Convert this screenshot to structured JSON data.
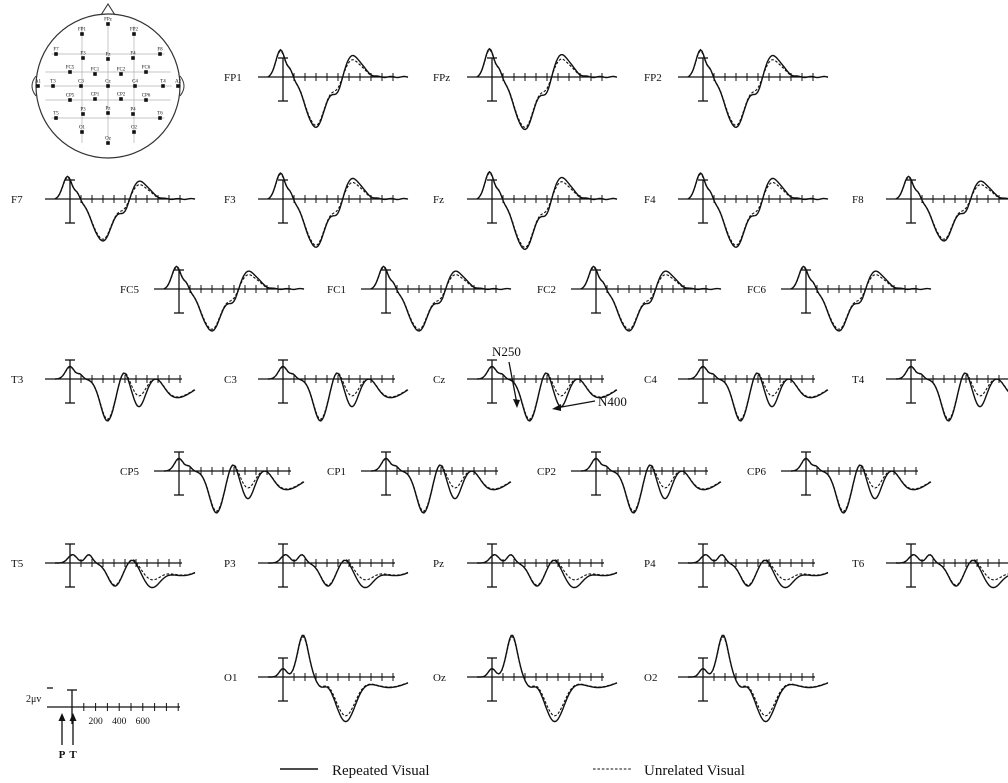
{
  "chart_data": {
    "type": "line",
    "title": "",
    "electrodes": [
      "FP1",
      "FPz",
      "FP2",
      "F7",
      "F3",
      "Fz",
      "F4",
      "F8",
      "FC5",
      "FC1",
      "FC2",
      "FC6",
      "T3",
      "C3",
      "Cz",
      "C4",
      "T4",
      "CP5",
      "CP1",
      "CP2",
      "CP6",
      "T5",
      "P3",
      "Pz",
      "P4",
      "T6",
      "O1",
      "Oz",
      "O2"
    ],
    "series": [
      {
        "name": "Repeated Visual",
        "style": "solid"
      },
      {
        "name": "Unrelated Visual",
        "style": "dashed"
      }
    ],
    "time_ticks_ms": [
      200,
      400,
      600
    ],
    "x_unit": "ms",
    "scale_label": "2μv",
    "event_markers": [
      "P",
      "T"
    ],
    "annotations": [
      "N250",
      "N400"
    ],
    "annotated_electrode": "Cz",
    "montage_labels": [
      "FPz",
      "FP1",
      "FP2",
      "F7",
      "F3",
      "Fz",
      "F4",
      "F8",
      "FC5",
      "FC1",
      "FC2",
      "FC6",
      "A1",
      "T3",
      "C3",
      "Cz",
      "C4",
      "T4",
      "A2",
      "CP5",
      "CP1",
      "CP2",
      "CP6",
      "T5",
      "P3",
      "Pz",
      "P4",
      "T6",
      "O1",
      "Oz",
      "O2"
    ]
  }
}
